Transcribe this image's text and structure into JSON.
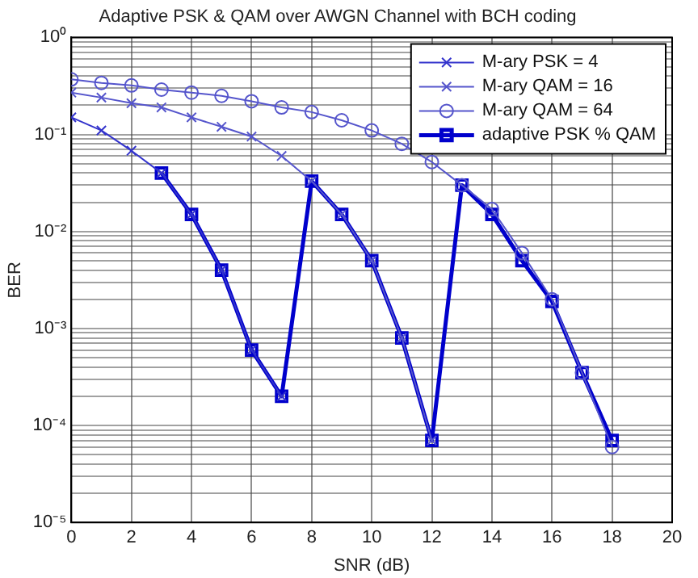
{
  "chart_data": {
    "type": "line",
    "title": "Adaptive PSK & QAM over AWGN Channel with BCH coding",
    "xlabel": "SNR (dB)",
    "ylabel": "BER",
    "log": "y",
    "grid": true,
    "legend": "top right",
    "line_style": "solid",
    "xlim": [
      0,
      20
    ],
    "xticks": [
      0,
      2,
      4,
      6,
      8,
      10,
      12,
      14,
      16,
      18,
      20
    ],
    "ylim": [
      1e-05,
      1
    ],
    "yticks": [
      {
        "value": 1e-05,
        "label": "10⁻⁵"
      },
      {
        "value": 2e-05,
        "label": null
      },
      {
        "value": 3e-05,
        "label": null
      },
      {
        "value": 4e-05,
        "label": null
      },
      {
        "value": 5e-05,
        "label": null
      },
      {
        "value": 6e-05,
        "label": null
      },
      {
        "value": 7e-05,
        "label": null
      },
      {
        "value": 8e-05,
        "label": null
      },
      {
        "value": 9e-05,
        "label": null
      },
      {
        "value": 0.0001,
        "label": "10⁻⁴"
      },
      {
        "value": 0.0002,
        "label": null
      },
      {
        "value": 0.0003,
        "label": null
      },
      {
        "value": 0.0004,
        "label": null
      },
      {
        "value": 0.0005,
        "label": null
      },
      {
        "value": 0.0006,
        "label": null
      },
      {
        "value": 0.0007,
        "label": null
      },
      {
        "value": 0.0008,
        "label": null
      },
      {
        "value": 0.0009,
        "label": null
      },
      {
        "value": 0.001,
        "label": "10⁻³"
      },
      {
        "value": 0.002,
        "label": null
      },
      {
        "value": 0.003,
        "label": null
      },
      {
        "value": 0.004,
        "label": null
      },
      {
        "value": 0.005,
        "label": null
      },
      {
        "value": 0.006,
        "label": null
      },
      {
        "value": 0.007,
        "label": null
      },
      {
        "value": 0.008,
        "label": null
      },
      {
        "value": 0.009,
        "label": null
      },
      {
        "value": 0.01,
        "label": "10⁻²"
      },
      {
        "value": 0.02,
        "label": null
      },
      {
        "value": 0.03,
        "label": null
      },
      {
        "value": 0.04,
        "label": null
      },
      {
        "value": 0.05,
        "label": null
      },
      {
        "value": 0.06,
        "label": null
      },
      {
        "value": 0.07,
        "label": null
      },
      {
        "value": 0.08,
        "label": null
      },
      {
        "value": 0.09,
        "label": null
      },
      {
        "value": 0.1,
        "label": "10⁻¹"
      },
      {
        "value": 0.2,
        "label": null
      },
      {
        "value": 0.3,
        "label": null
      },
      {
        "value": 0.4,
        "label": null
      },
      {
        "value": 0.5,
        "label": null
      },
      {
        "value": 0.6,
        "label": null
      },
      {
        "value": 0.7,
        "label": null
      },
      {
        "value": 0.8,
        "label": null
      },
      {
        "value": 0.9,
        "label": null
      },
      {
        "value": 1,
        "label": "10⁰"
      }
    ],
    "series": [
      {
        "name": "M-ary PSK = 4",
        "color": "#3333cc",
        "marker": "cross",
        "x": [
          0,
          1,
          2,
          3,
          4,
          5,
          6,
          7
        ],
        "values": [
          0.15,
          0.11,
          0.068,
          0.04,
          0.015,
          0.004,
          0.0006,
          0.0002
        ]
      },
      {
        "name": "M-ary QAM = 16",
        "color": "#5555cc",
        "marker": "cross",
        "x": [
          0,
          1,
          2,
          3,
          4,
          5,
          6,
          7,
          8,
          9,
          10,
          11,
          12
        ],
        "values": [
          0.27,
          0.24,
          0.21,
          0.19,
          0.15,
          0.12,
          0.095,
          0.06,
          0.033,
          0.015,
          0.005,
          0.0008,
          7e-05
        ]
      },
      {
        "name": "M-ary QAM = 64",
        "color": "#5555cc",
        "marker": "circle",
        "x": [
          0,
          1,
          2,
          3,
          4,
          5,
          6,
          7,
          8,
          9,
          10,
          11,
          12,
          13,
          14,
          15,
          16,
          17,
          18
        ],
        "values": [
          0.37,
          0.34,
          0.32,
          0.29,
          0.27,
          0.25,
          0.22,
          0.19,
          0.17,
          0.14,
          0.11,
          0.08,
          0.052,
          0.03,
          0.017,
          0.006,
          0.002,
          0.00035,
          6e-05
        ]
      },
      {
        "name": "adaptive PSK % QAM",
        "color": "#0000cc",
        "marker": "square",
        "x": [
          3,
          4,
          5,
          6,
          7,
          8,
          9,
          10,
          11,
          12,
          13,
          14,
          15,
          16,
          17,
          18
        ],
        "values": [
          0.04,
          0.015,
          0.004,
          0.0006,
          0.0002,
          0.033,
          0.015,
          0.005,
          0.0008,
          7e-05,
          0.03,
          0.015,
          0.005,
          0.0019,
          0.00035,
          7e-05
        ]
      }
    ]
  }
}
